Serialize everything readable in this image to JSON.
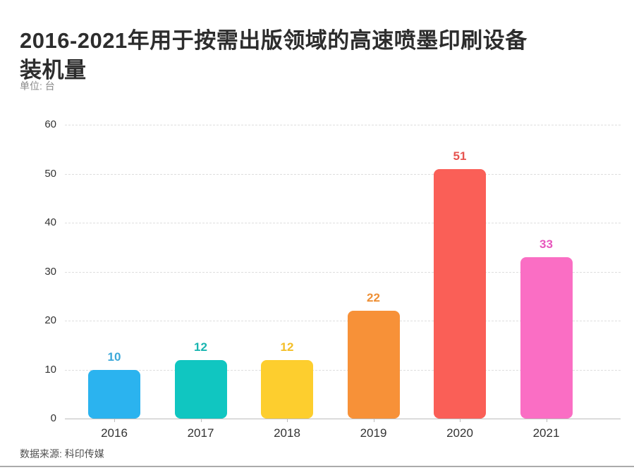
{
  "header": {
    "title_line1": "2016-2021年用于按需出版领域的高速喷墨印刷设备",
    "title_line2": "装机量",
    "unit_label": "单位: 台"
  },
  "footer": {
    "source_label": "数据来源: 科印传媒"
  },
  "chart_data": {
    "type": "bar",
    "title": "2016-2021年用于按需出版领域的高速喷墨印刷设备装机量",
    "unit": "台",
    "source": "科印传媒",
    "categories": [
      "2016",
      "2017",
      "2018",
      "2019",
      "2020",
      "2021"
    ],
    "values": [
      10,
      12,
      12,
      22,
      51,
      33
    ],
    "bar_colors": [
      "#2BB3EF",
      "#10C6C1",
      "#FDCE2E",
      "#F79138",
      "#FA5F57",
      "#FA6EC4"
    ],
    "value_label_colors": [
      "#3BA8D9",
      "#18B5B0",
      "#F4BE25",
      "#EE9036",
      "#E6534F",
      "#E756BC"
    ],
    "xlabel": "",
    "ylabel": "",
    "ylim": [
      0,
      60
    ],
    "yticks": [
      0,
      10,
      20,
      30,
      40,
      50,
      60
    ],
    "grid": "horizontal-dashed",
    "legend": "none"
  }
}
